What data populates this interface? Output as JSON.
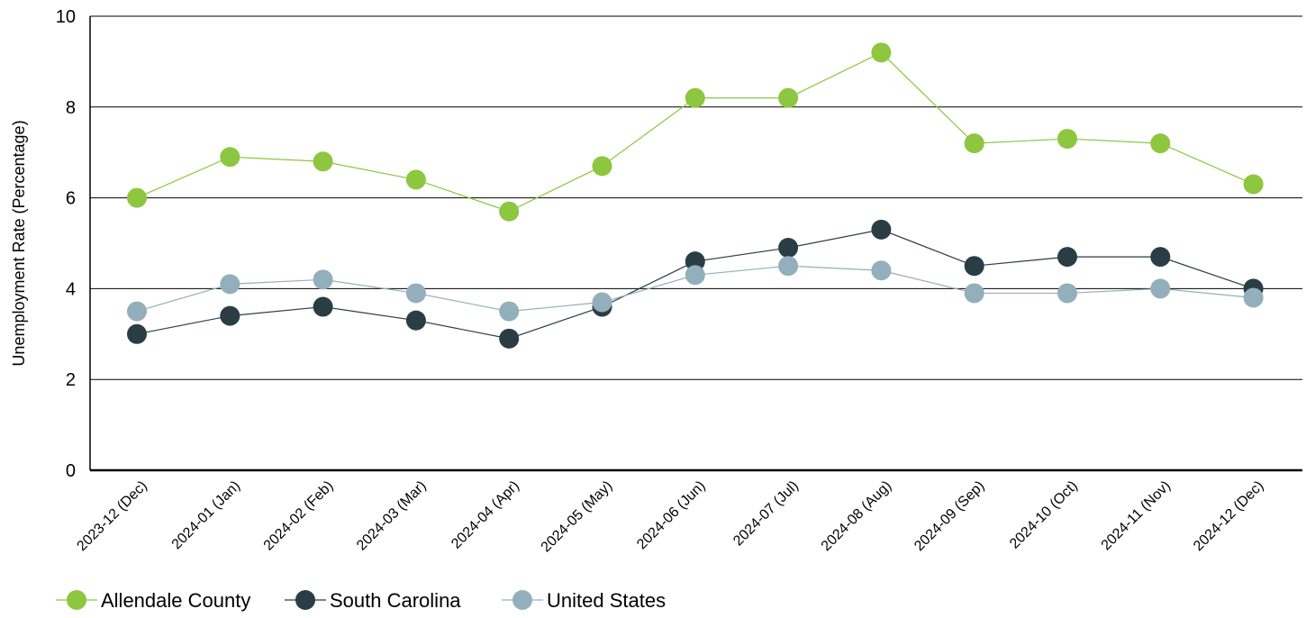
{
  "chart_data": {
    "type": "line",
    "title": "",
    "xlabel": "",
    "ylabel": "Unemployment Rate (Percentage)",
    "ylim": [
      0,
      10
    ],
    "yticks": [
      0,
      2,
      4,
      6,
      8,
      10
    ],
    "grid": "horizontal",
    "legend_position": "bottom-left",
    "categories": [
      "2023-12 (Dec)",
      "2024-01 (Jan)",
      "2024-02 (Feb)",
      "2024-03 (Mar)",
      "2024-04 (Apr)",
      "2024-05 (May)",
      "2024-06 (Jun)",
      "2024-07 (Jul)",
      "2024-08 (Aug)",
      "2024-09 (Sep)",
      "2024-10 (Oct)",
      "2024-11 (Nov)",
      "2024-12 (Dec)"
    ],
    "series": [
      {
        "name": "Allendale County",
        "color": "#8dc63f",
        "values": [
          6.0,
          6.9,
          6.8,
          6.4,
          5.7,
          6.7,
          8.2,
          8.2,
          9.2,
          7.2,
          7.3,
          7.2,
          6.3
        ]
      },
      {
        "name": "South Carolina",
        "color": "#2a3d45",
        "values": [
          3.0,
          3.4,
          3.6,
          3.3,
          2.9,
          3.6,
          4.6,
          4.9,
          5.3,
          4.5,
          4.7,
          4.7,
          4.0
        ]
      },
      {
        "name": "United States",
        "color": "#93afbb",
        "values": [
          3.5,
          4.1,
          4.2,
          3.9,
          3.5,
          3.7,
          4.3,
          4.5,
          4.4,
          3.9,
          3.9,
          4.0,
          3.8
        ]
      }
    ]
  }
}
